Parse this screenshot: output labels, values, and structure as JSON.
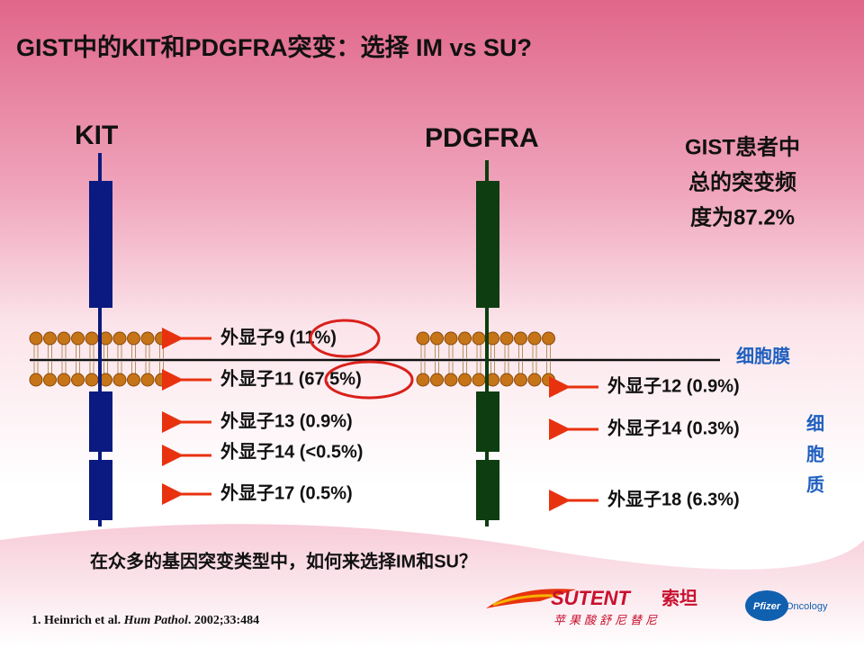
{
  "title": "GIST中的KIT和PDGFRA突变：选择 IM vs SU?",
  "receptors": [
    {
      "name": "KIT",
      "exons": [
        "外显子9 (11%)",
        "外显子11 (67.5%)",
        "外显子13 (0.9%)",
        "外显子14 (<0.5%)",
        "外显子17 (0.5%)"
      ]
    },
    {
      "name": "PDGFRA",
      "exons": [
        "外显子12 (0.9%)",
        "外显子14 (0.3%)",
        "外显子18 (6.3%)"
      ]
    }
  ],
  "summary": [
    "GIST患者中",
    "总的突变频",
    "度为87.2%"
  ],
  "membrane_label": "细胞膜",
  "cytoplasm_label": [
    "细",
    "胞",
    "质"
  ],
  "question": "在众多的基因突变类型中，如何来选择IM和SU？",
  "reference": {
    "authors": "1. Heinrich et al.",
    "journal": "Hum Pathol",
    "details": ". 2002;33:484"
  },
  "logos": {
    "brand": "SUTENT",
    "brand_cn": "索坦",
    "generic_cn": "苹果酸舒尼替尼",
    "company": "Pfizer",
    "division": "Oncology"
  }
}
